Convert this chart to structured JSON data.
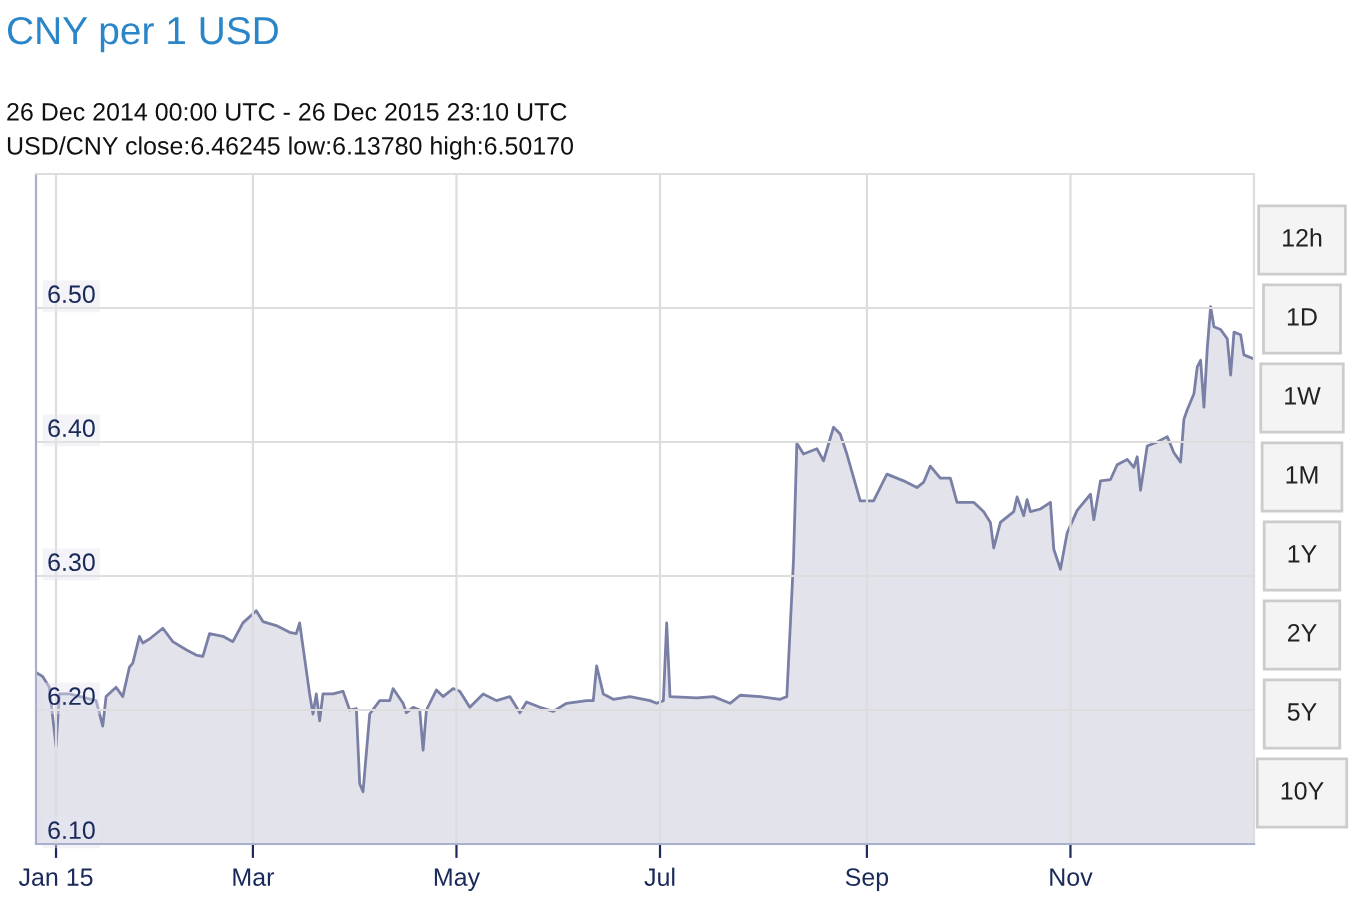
{
  "chart_data": {
    "type": "area",
    "title": "CNY per 1 USD",
    "subtitle": "26 Dec 2014 00:00 UTC - 26 Dec 2015 23:10 UTC",
    "annotations": [
      "USD/CNY close:6.46245 low:6.13780 high:6.50170",
      "12h",
      "1D",
      "1W",
      "1M",
      "1Y",
      "2Y",
      "5Y",
      "10Y"
    ],
    "x": [
      "2014-12-26",
      "2014-12-28",
      "2014-12-30",
      "2015-01-01",
      "2015-01-02",
      "2015-01-05",
      "2015-01-13",
      "2015-01-15",
      "2015-01-16",
      "2015-01-19",
      "2015-01-21",
      "2015-01-23",
      "2015-01-24",
      "2015-01-26",
      "2015-01-27",
      "2015-01-29",
      "2015-02-02",
      "2015-02-05",
      "2015-02-09",
      "2015-02-12",
      "2015-02-14",
      "2015-02-16",
      "2015-02-20",
      "2015-02-23",
      "2015-02-26",
      "2015-03-02",
      "2015-03-04",
      "2015-03-08",
      "2015-03-12",
      "2015-03-14",
      "2015-03-15",
      "2015-03-18",
      "2015-03-19",
      "2015-03-20",
      "2015-03-21",
      "2015-03-22",
      "2015-03-25",
      "2015-03-28",
      "2015-03-30",
      "2015-04-01",
      "2015-04-02",
      "2015-04-03",
      "2015-04-05",
      "2015-04-08",
      "2015-04-11",
      "2015-04-12",
      "2015-04-15",
      "2015-04-16",
      "2015-04-18",
      "2015-04-20",
      "2015-04-21",
      "2015-04-22",
      "2015-04-25",
      "2015-04-27",
      "2015-04-30",
      "2015-05-02",
      "2015-05-05",
      "2015-05-09",
      "2015-05-13",
      "2015-05-17",
      "2015-05-20",
      "2015-05-22",
      "2015-05-26",
      "2015-05-30",
      "2015-06-03",
      "2015-06-09",
      "2015-06-11",
      "2015-06-12",
      "2015-06-14",
      "2015-06-17",
      "2015-06-22",
      "2015-06-28",
      "2015-06-30",
      "2015-07-02",
      "2015-07-03",
      "2015-07-04",
      "2015-07-12",
      "2015-07-17",
      "2015-07-22",
      "2015-07-25",
      "2015-07-31",
      "2015-08-06",
      "2015-08-08",
      "2015-08-10",
      "2015-08-11",
      "2015-08-13",
      "2015-08-17",
      "2015-08-19",
      "2015-08-22",
      "2015-08-24",
      "2015-08-26",
      "2015-08-30",
      "2015-09-03",
      "2015-09-07",
      "2015-09-12",
      "2015-09-16",
      "2015-09-18",
      "2015-09-20",
      "2015-09-23",
      "2015-09-26",
      "2015-09-28",
      "2015-10-03",
      "2015-10-06",
      "2015-10-08",
      "2015-10-09",
      "2015-10-11",
      "2015-10-15",
      "2015-10-16",
      "2015-10-18",
      "2015-10-19",
      "2015-10-20",
      "2015-10-23",
      "2015-10-26",
      "2015-10-27",
      "2015-10-29",
      "2015-10-31",
      "2015-11-03",
      "2015-11-07",
      "2015-11-08",
      "2015-11-10",
      "2015-11-13",
      "2015-11-15",
      "2015-11-18",
      "2015-11-20",
      "2015-11-21",
      "2015-11-22",
      "2015-11-24",
      "2015-11-27",
      "2015-11-30",
      "2015-12-02",
      "2015-12-04",
      "2015-12-05",
      "2015-12-06",
      "2015-12-08",
      "2015-12-09",
      "2015-12-10",
      "2015-12-11",
      "2015-12-12",
      "2015-12-13",
      "2015-12-14",
      "2015-12-16",
      "2015-12-18",
      "2015-12-19",
      "2015-12-20",
      "2015-12-22",
      "2015-12-23",
      "2015-12-26"
    ],
    "series": [
      {
        "color": "#7a7fa6",
        "values": [
          6.228,
          6.225,
          6.217,
          6.173,
          6.212,
          6.212,
          6.207,
          6.188,
          6.21,
          6.217,
          6.21,
          6.232,
          6.235,
          6.255,
          6.25,
          6.253,
          6.261,
          6.251,
          6.245,
          6.241,
          6.24,
          6.257,
          6.255,
          6.251,
          6.265,
          6.274,
          6.266,
          6.263,
          6.258,
          6.257,
          6.265,
          6.212,
          6.197,
          6.212,
          6.192,
          6.212,
          6.212,
          6.214,
          6.2,
          6.201,
          6.145,
          6.139,
          6.197,
          6.207,
          6.207,
          6.216,
          6.205,
          6.198,
          6.202,
          6.2,
          6.17,
          6.2,
          6.215,
          6.21,
          6.216,
          6.214,
          6.202,
          6.212,
          6.207,
          6.21,
          6.198,
          6.206,
          6.202,
          6.199,
          6.205,
          6.207,
          6.207,
          6.233,
          6.212,
          6.208,
          6.21,
          6.207,
          6.205,
          6.207,
          6.265,
          6.21,
          6.209,
          6.21,
          6.205,
          6.211,
          6.21,
          6.208,
          6.21,
          6.312,
          6.399,
          6.391,
          6.395,
          6.386,
          6.411,
          6.406,
          6.391,
          6.356,
          6.356,
          6.376,
          6.371,
          6.366,
          6.37,
          6.382,
          6.373,
          6.373,
          6.355,
          6.355,
          6.348,
          6.34,
          6.321,
          6.34,
          6.348,
          6.359,
          6.345,
          6.357,
          6.348,
          6.35,
          6.355,
          6.32,
          6.305,
          6.332,
          6.349,
          6.361,
          6.342,
          6.371,
          6.372,
          6.383,
          6.387,
          6.381,
          6.389,
          6.364,
          6.397,
          6.4,
          6.404,
          6.392,
          6.385,
          6.417,
          6.424,
          6.436,
          6.456,
          6.461,
          6.426,
          6.47,
          6.501,
          6.486,
          6.484,
          6.477,
          6.45,
          6.482,
          6.48,
          6.465,
          6.462
        ]
      }
    ],
    "xlim": [
      "2014-12-26",
      "2015-12-26"
    ],
    "xticks": [
      {
        "value": "2015-01-01",
        "label": "Jan 15"
      },
      {
        "value": "2015-03-01",
        "label": "Mar"
      },
      {
        "value": "2015-05-01",
        "label": "May"
      },
      {
        "value": "2015-07-01",
        "label": "Jul"
      },
      {
        "value": "2015-09-01",
        "label": "Sep"
      },
      {
        "value": "2015-11-01",
        "label": "Nov"
      }
    ],
    "ylim": [
      6.1,
      6.6
    ],
    "yticks": [
      {
        "value": 6.1,
        "label": "6.10"
      },
      {
        "value": 6.2,
        "label": "6.20"
      },
      {
        "value": 6.3,
        "label": "6.30"
      },
      {
        "value": 6.4,
        "label": "6.40"
      },
      {
        "value": 6.5,
        "label": "6.50"
      }
    ],
    "grid": true,
    "legend": false
  }
}
